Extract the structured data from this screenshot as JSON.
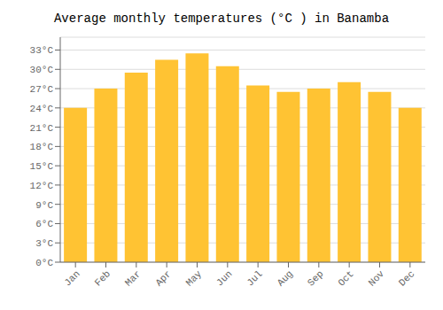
{
  "chart_data": {
    "type": "bar",
    "title": "Average monthly temperatures (°C ) in Banamba",
    "categories": [
      "Jan",
      "Feb",
      "Mar",
      "Apr",
      "May",
      "Jun",
      "Jul",
      "Aug",
      "Sep",
      "Oct",
      "Nov",
      "Dec"
    ],
    "values": [
      24,
      27,
      29.5,
      31.5,
      32.5,
      30.5,
      27.5,
      26.5,
      27,
      28,
      26.5,
      24
    ],
    "color": "#FFC333",
    "ylim": [
      0,
      35
    ],
    "yticks": [
      {
        "value": 0,
        "label": "0°C"
      },
      {
        "value": 3,
        "label": "3°C"
      },
      {
        "value": 6,
        "label": "6°C"
      },
      {
        "value": 9,
        "label": "9°C"
      },
      {
        "value": 12,
        "label": "12°C"
      },
      {
        "value": 15,
        "label": "15°C"
      },
      {
        "value": 18,
        "label": "18°C"
      },
      {
        "value": 21,
        "label": "21°C"
      },
      {
        "value": 24,
        "label": "24°C"
      },
      {
        "value": 27,
        "label": "27°C"
      },
      {
        "value": 30,
        "label": "30°C"
      },
      {
        "value": 33,
        "label": "33°C"
      }
    ],
    "grid": true
  }
}
